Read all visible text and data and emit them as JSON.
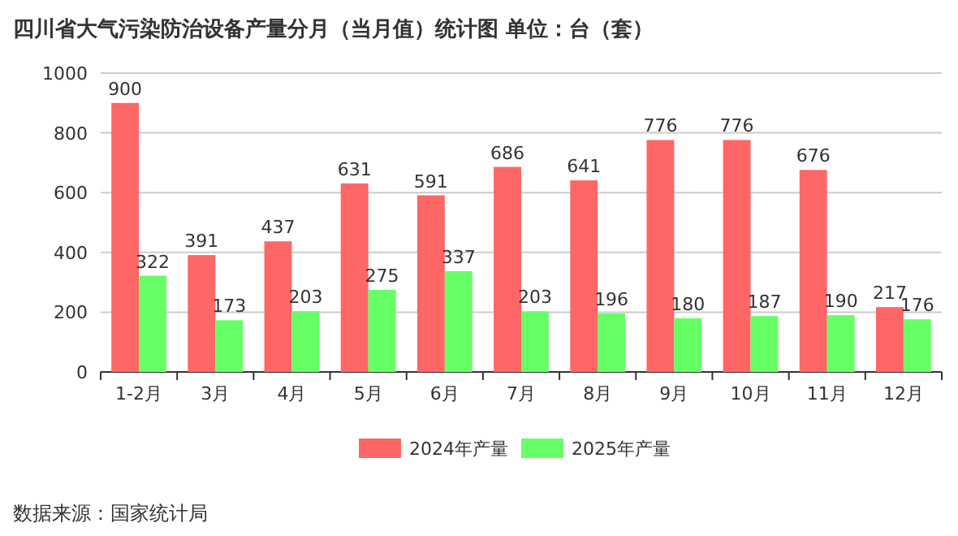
{
  "chart_data": {
    "type": "bar",
    "title": "四川省大气污染防治设备产量分月（当月值）统计图  单位：台（套）",
    "categories": [
      "1-2月",
      "3月",
      "4月",
      "5月",
      "6月",
      "7月",
      "8月",
      "9月",
      "10月",
      "11月",
      "12月"
    ],
    "series": [
      {
        "name": "2024年产量",
        "color": "#ff6666",
        "values": [
          900,
          391,
          437,
          631,
          591,
          686,
          641,
          776,
          776,
          676,
          217
        ]
      },
      {
        "name": "2025年产量",
        "color": "#66ff66",
        "values": [
          322,
          173,
          203,
          275,
          337,
          203,
          196,
          180,
          187,
          190,
          176
        ]
      }
    ],
    "ylim": [
      0,
      1000
    ],
    "yticks": [
      0,
      200,
      400,
      600,
      800,
      1000
    ],
    "grid": "y",
    "legend": "bottom",
    "data_labels": true,
    "annotations": [
      "数据来源：国家统计局"
    ]
  }
}
